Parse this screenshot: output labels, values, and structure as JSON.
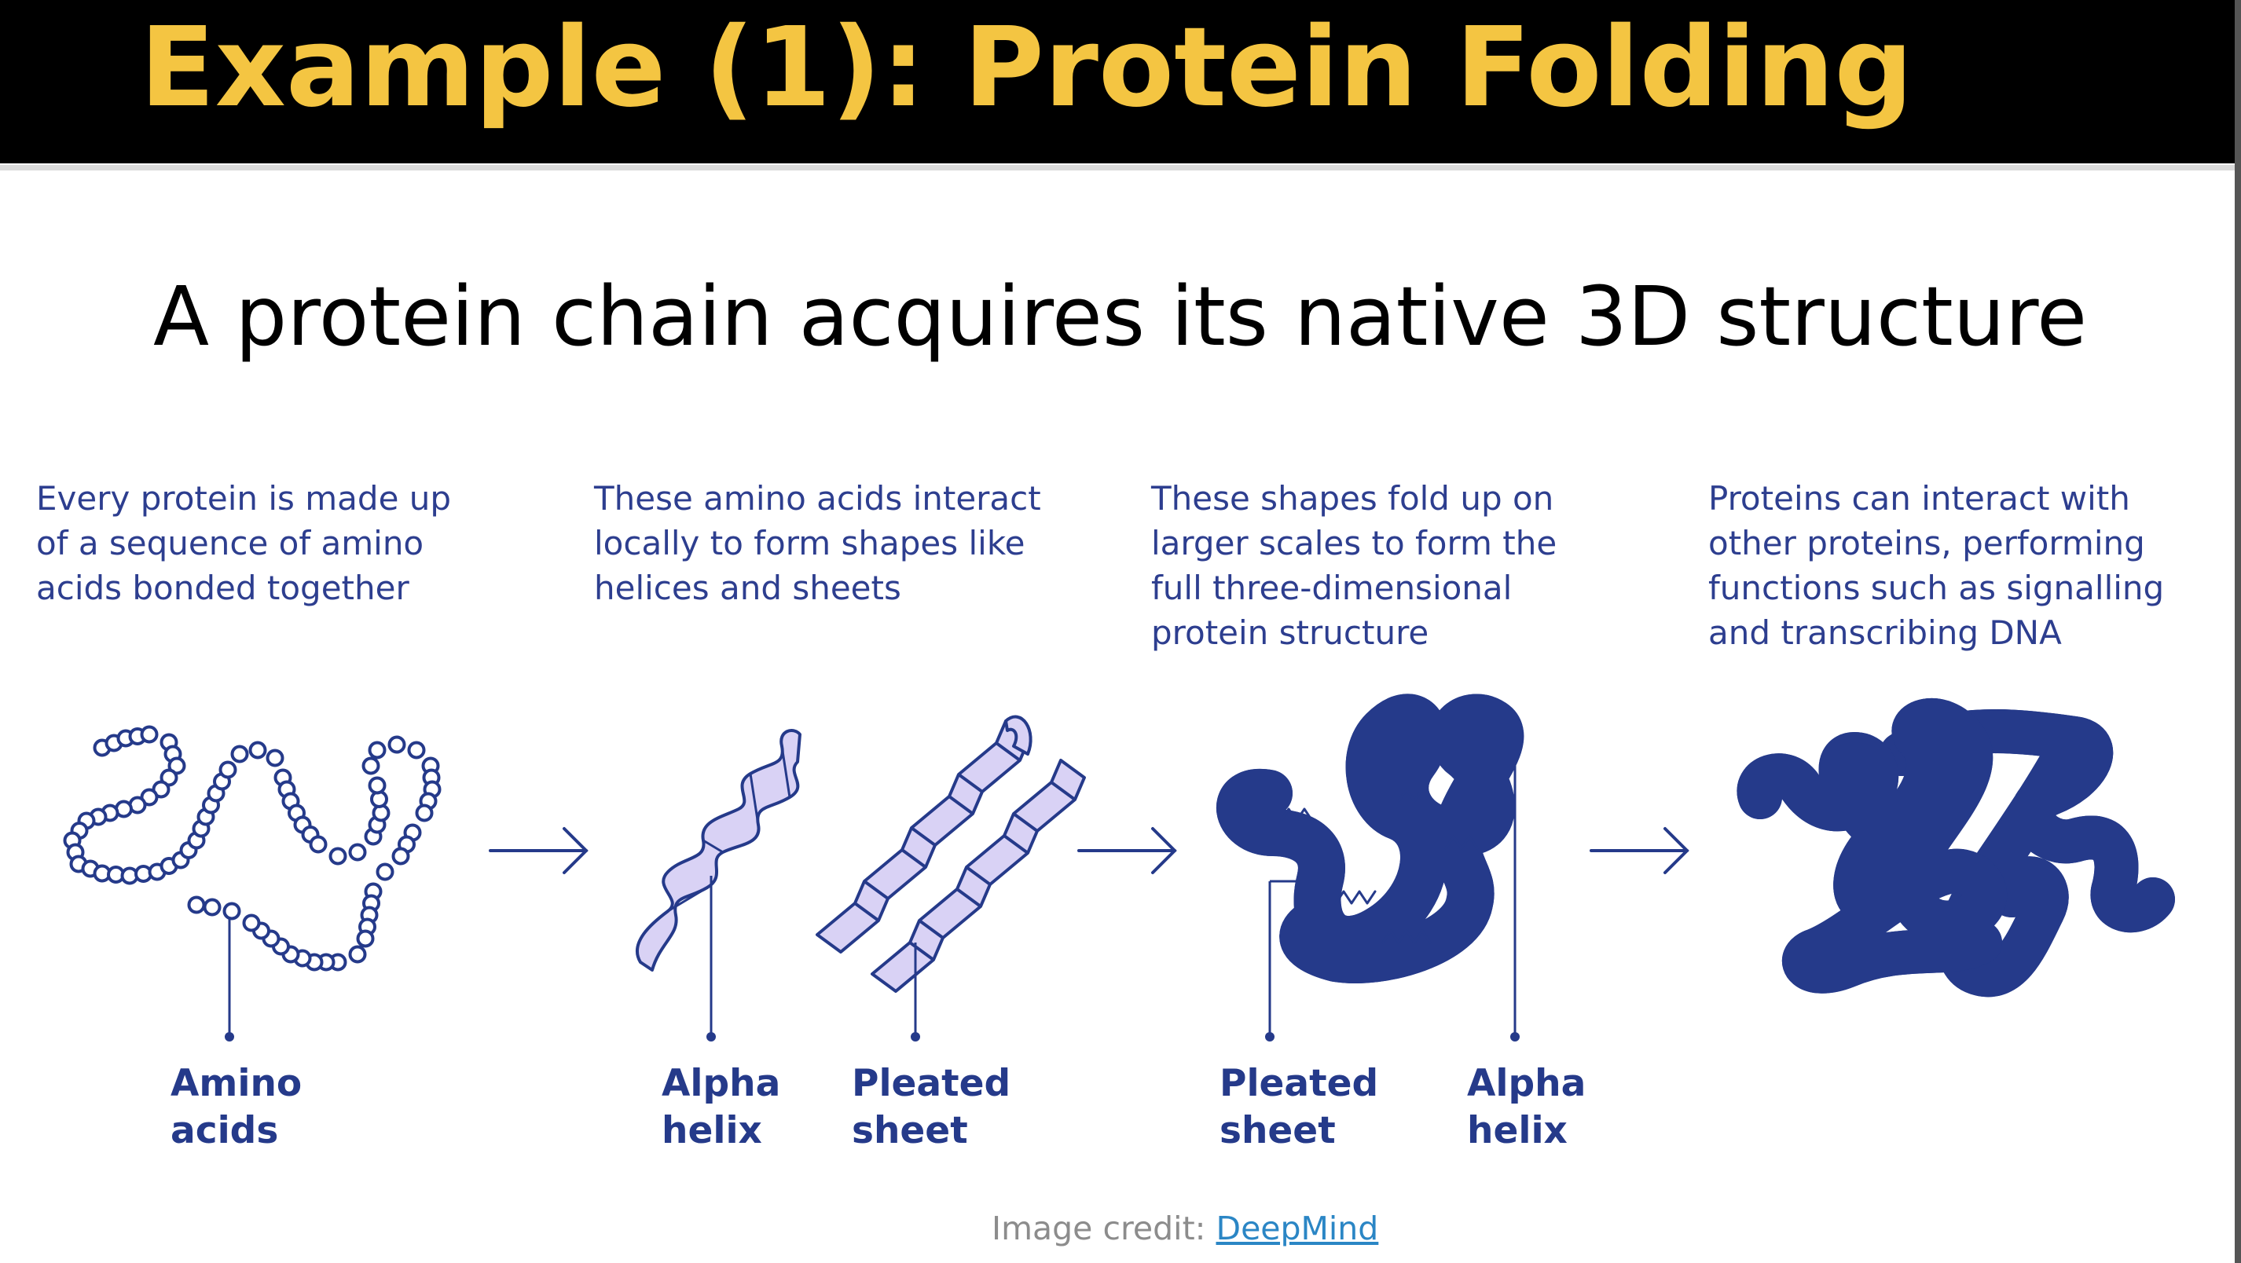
{
  "slide": {
    "title": "Example (1): Protein Folding",
    "subtitle": "A protein chain acquires its native 3D structure"
  },
  "steps": [
    {
      "description": "Every protein is made up\nof a sequence of amino\nacids bonded together"
    },
    {
      "description": "These amino acids interact\nlocally to form shapes like\nhelices and sheets"
    },
    {
      "description": "These shapes fold up on\nlarger scales to form the\nfull three-dimensional\nprotein structure"
    },
    {
      "description": "Proteins can interact with\nother proteins, performing\nfunctions such as signalling\nand transcribing DNA"
    }
  ],
  "labels": {
    "amino_acids": "Amino\nacids",
    "alpha_helix_1": "Alpha\nhelix",
    "pleated_sheet_1": "Pleated\nsheet",
    "pleated_sheet_2": "Pleated\nsheet",
    "alpha_helix_2": "Alpha\nhelix"
  },
  "credit": {
    "prefix": "Image credit: ",
    "link_text": "DeepMind"
  },
  "colors": {
    "title_text": "#f4c542",
    "title_bar": "#000000",
    "diagram_navy": "#253a8a",
    "helix_fill": "#d9d2f5",
    "teal": "#86dcc9",
    "red": "#e06565",
    "link": "#2b86c5"
  }
}
